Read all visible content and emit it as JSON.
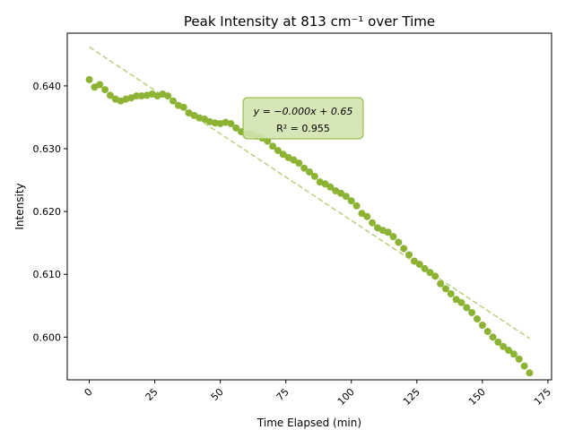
{
  "chart_data": {
    "type": "scatter",
    "title": "Peak Intensity at 813 cm⁻¹ over Time",
    "xlabel": "Time Elapsed (min)",
    "ylabel": "Intensity",
    "xlim": [
      -8.4,
      176.4
    ],
    "ylim": [
      0.5932,
      0.6484
    ],
    "xticks": [
      0,
      25,
      50,
      75,
      100,
      125,
      150,
      175
    ],
    "yticks": [
      0.6,
      0.61,
      0.62,
      0.63,
      0.64
    ],
    "ytick_labels": [
      "0.600",
      "0.610",
      "0.620",
      "0.630",
      "0.640"
    ],
    "point_color": "#8db335",
    "fit_color": "#b8d07c",
    "grid": false,
    "series": [
      {
        "x": [
          0,
          2,
          4,
          6,
          8,
          10,
          12,
          14,
          16,
          18,
          20,
          22,
          24,
          26,
          28,
          30,
          32,
          34,
          36,
          38,
          40,
          42,
          44,
          46,
          48,
          50,
          52,
          54,
          56,
          58,
          60,
          62,
          64,
          66,
          68,
          70,
          72,
          74,
          76,
          78,
          80,
          82,
          84,
          86,
          88,
          90,
          92,
          94,
          96,
          98,
          100,
          102,
          104,
          106,
          108,
          110,
          112,
          114,
          116,
          118,
          120,
          122,
          124,
          126,
          128,
          130,
          132,
          134,
          136,
          138,
          140,
          142,
          144,
          146,
          148,
          150,
          152,
          154,
          156,
          158,
          160,
          162,
          164,
          166,
          168
        ],
        "y": [
          0.641,
          0.6398,
          0.6402,
          0.6394,
          0.6385,
          0.6379,
          0.6376,
          0.6379,
          0.6381,
          0.6384,
          0.6384,
          0.6385,
          0.6387,
          0.6384,
          0.6387,
          0.6384,
          0.6376,
          0.6369,
          0.6366,
          0.6357,
          0.6353,
          0.6349,
          0.6347,
          0.6343,
          0.6341,
          0.634,
          0.6342,
          0.634,
          0.6333,
          0.6327,
          0.6324,
          0.6323,
          0.632,
          0.6317,
          0.6312,
          0.6304,
          0.6297,
          0.6291,
          0.6286,
          0.6282,
          0.6277,
          0.6269,
          0.6263,
          0.6256,
          0.6247,
          0.6244,
          0.6239,
          0.6233,
          0.6229,
          0.6224,
          0.6217,
          0.6209,
          0.6197,
          0.6192,
          0.6182,
          0.6174,
          0.617,
          0.6167,
          0.616,
          0.6151,
          0.6141,
          0.6131,
          0.6121,
          0.6116,
          0.6109,
          0.6103,
          0.6097,
          0.6085,
          0.6077,
          0.6069,
          0.606,
          0.6055,
          0.6047,
          0.6039,
          0.6029,
          0.6019,
          0.6009,
          0.6,
          0.5992,
          0.5985,
          0.5979,
          0.5973,
          0.5965,
          0.5954,
          0.5943
        ]
      }
    ],
    "fit_line": {
      "x": [
        0,
        168
      ],
      "y": [
        0.6462,
        0.5998
      ],
      "style": "dashed"
    },
    "annotation": {
      "line1": "y = −0.000x + 0.65",
      "line2": "R² = 0.955"
    }
  }
}
